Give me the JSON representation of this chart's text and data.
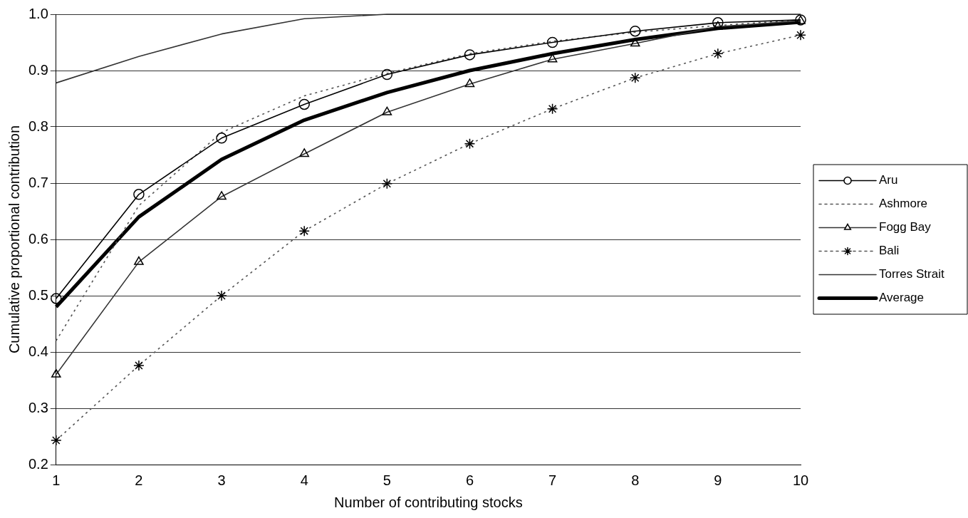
{
  "chart_data": {
    "type": "line",
    "xlabel": "Number of contributing stocks",
    "ylabel": "Cumulative proportional contribution",
    "x": [
      1,
      2,
      3,
      4,
      5,
      6,
      7,
      8,
      9,
      10
    ],
    "xlim": [
      1,
      10
    ],
    "xticks": [
      1,
      2,
      3,
      4,
      5,
      6,
      7,
      8,
      9,
      10
    ],
    "ylim": [
      0.2,
      1.0
    ],
    "yticks": [
      {
        "value": 0.2,
        "label": "0.2"
      },
      {
        "value": 0.3,
        "label": "0.3"
      },
      {
        "value": 0.4,
        "label": "0.4"
      },
      {
        "value": 0.5,
        "label": "0.5"
      },
      {
        "value": 0.6,
        "label": "0.6"
      },
      {
        "value": 0.7,
        "label": "0.7"
      },
      {
        "value": 0.8,
        "label": "0.8"
      },
      {
        "value": 0.9,
        "label": "0.9"
      },
      {
        "value": 1.0,
        "label": "1.0"
      }
    ],
    "grid": "y",
    "legend": "right",
    "series": [
      {
        "name": "Aru",
        "color": "#000000",
        "marker": "circle",
        "line_style": "solid",
        "values": [
          0.495,
          0.68,
          0.78,
          0.84,
          0.893,
          0.928,
          0.95,
          0.97,
          0.985,
          0.99
        ]
      },
      {
        "name": "Ashmore",
        "color": "#555555",
        "marker": "none",
        "line_style": "dotted",
        "values": [
          0.42,
          0.66,
          0.79,
          0.855,
          0.895,
          0.93,
          0.952,
          0.968,
          0.98,
          0.99
        ]
      },
      {
        "name": "Fogg Bay",
        "color": "#333333",
        "marker": "triangle",
        "line_style": "solid",
        "values": [
          0.36,
          0.56,
          0.676,
          0.752,
          0.826,
          0.876,
          0.92,
          0.948,
          0.978,
          0.988
        ]
      },
      {
        "name": "Bali",
        "color": "#555555",
        "marker": "cross",
        "line_style": "dotted",
        "values": [
          0.243,
          0.376,
          0.5,
          0.615,
          0.699,
          0.77,
          0.832,
          0.887,
          0.93,
          0.963
        ]
      },
      {
        "name": "Torres Strait",
        "color": "#333333",
        "marker": "none",
        "line_style": "solid",
        "values": [
          0.878,
          0.925,
          0.965,
          0.992,
          1.0,
          1.0,
          1.0,
          1.0,
          1.0,
          1.0
        ]
      },
      {
        "name": "Average",
        "color": "#000000",
        "marker": "none",
        "line_style": "solid",
        "values": [
          0.48,
          0.64,
          0.742,
          0.812,
          0.861,
          0.9,
          0.93,
          0.955,
          0.975,
          0.986
        ]
      }
    ]
  }
}
